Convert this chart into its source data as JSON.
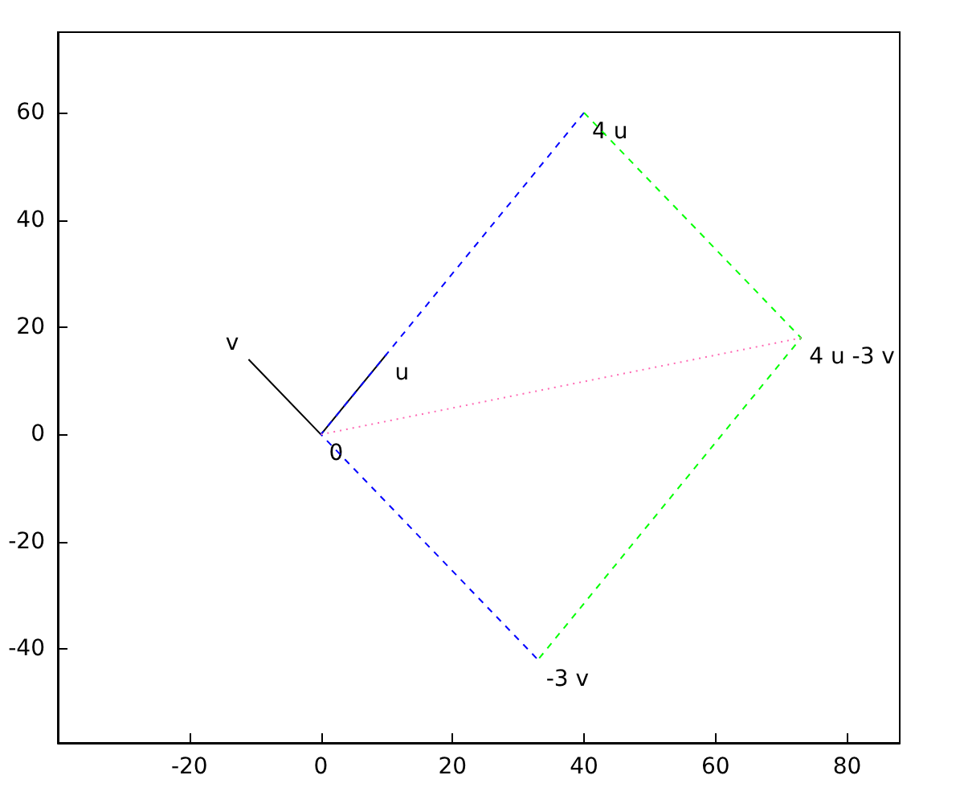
{
  "chart_data": {
    "type": "line",
    "series": [
      {
        "color": "#000000",
        "line_style": "solid",
        "x": [
          -11,
          0,
          10
        ],
        "values": [
          14,
          0,
          15
        ]
      },
      {
        "color": "#0000ff",
        "line_style": "dashed",
        "x": [
          40,
          0,
          33
        ],
        "values": [
          60,
          0,
          -42
        ]
      },
      {
        "color": "#00ff00",
        "line_style": "dashed",
        "x": [
          40,
          73,
          33
        ],
        "values": [
          60,
          18,
          -42
        ]
      },
      {
        "color": "#ff69b4",
        "line_style": "dotted",
        "x": [
          0,
          73
        ],
        "values": [
          0,
          18
        ]
      }
    ],
    "xlim": [
      -40,
      88
    ],
    "xticks": [
      -20,
      0,
      20,
      40,
      60,
      80
    ],
    "ylim": [
      -57.5,
      75
    ],
    "yticks": [
      -40,
      -20,
      0,
      20,
      40,
      60
    ],
    "annotations": [
      {
        "text": "v",
        "x": -11,
        "y": 14
      },
      {
        "text": "u",
        "x": 10,
        "y": 15
      },
      {
        "text": "0",
        "x": 0,
        "y": 0
      },
      {
        "text": "4 u",
        "x": 40,
        "y": 60
      },
      {
        "text": "-3 v",
        "x": 33,
        "y": -42
      },
      {
        "text": "4 u -3 v",
        "x": 73,
        "y": 18
      }
    ],
    "grid": false,
    "marker": "none"
  }
}
